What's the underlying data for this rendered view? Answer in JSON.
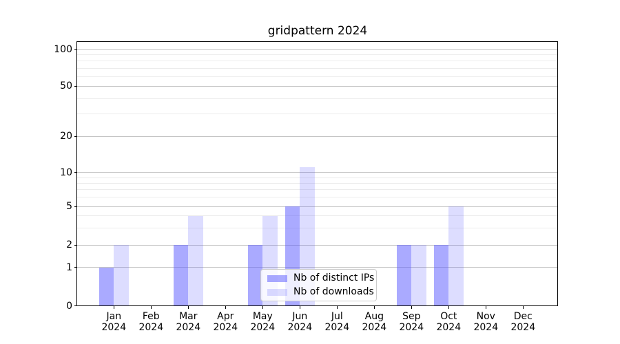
{
  "title": "gridpattern 2024",
  "colors": {
    "ips_bar": "rgba(85,85,255,0.5)",
    "downloads_bar": "rgba(85,85,255,0.2)",
    "grid_major": "#c4c4c4",
    "grid_minor": "#ececec",
    "spine": "#000000",
    "legend_border": "#cccccc",
    "legend_bg": "rgba(255,255,255,0.8)",
    "text": "#000000"
  },
  "legend": {
    "items": [
      {
        "label": "Nb of distinct IPs"
      },
      {
        "label": "Nb of downloads"
      }
    ]
  },
  "chart_data": {
    "type": "bar",
    "title": "gridpattern 2024",
    "months": [
      "Jan",
      "Feb",
      "Mar",
      "Apr",
      "May",
      "Jun",
      "Jul",
      "Aug",
      "Sep",
      "Oct",
      "Nov",
      "Dec"
    ],
    "year": "2024",
    "series": [
      {
        "name": "Nb of distinct IPs",
        "values": [
          1,
          0,
          2,
          0,
          2,
          5,
          0,
          0,
          2,
          2,
          0,
          0
        ]
      },
      {
        "name": "Nb of downloads",
        "values": [
          2,
          0,
          4,
          0,
          4,
          11,
          0,
          0,
          2,
          5,
          0,
          0
        ]
      }
    ],
    "yscale": "symlog",
    "yticks": [
      100,
      50,
      20,
      10,
      5,
      2,
      1,
      0
    ],
    "minor_yticks": [
      3,
      4,
      6,
      7,
      8,
      9,
      30,
      40,
      60,
      70,
      80,
      90
    ],
    "ylim": [
      0,
      115
    ],
    "grid": "both",
    "legend_position": "lower center"
  }
}
